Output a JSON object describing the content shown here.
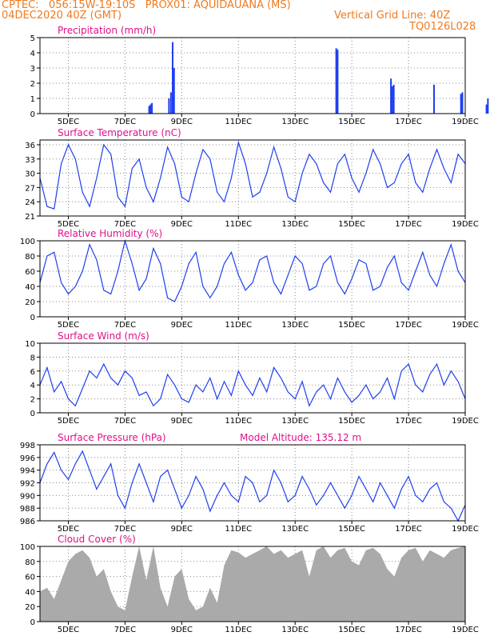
{
  "header": {
    "line1": "CPTEC:   056:15W-19:10S   PROX01: AQUIDAUANA (MS)",
    "line2": "04DEC2020 40Z (GMT)",
    "vgrid": "Vertical Grid Line: 40Z",
    "code": "TQ0126L028"
  },
  "colors": {
    "header": "#f07a1e",
    "title": "#e0108a",
    "line": "#1f3ff0",
    "fill": "#aaaaaa",
    "grid": "#888888"
  },
  "x_ticks": [
    "5DEC",
    "7DEC",
    "9DEC",
    "11DEC",
    "13DEC",
    "15DEC",
    "17DEC",
    "19DEC"
  ],
  "chart_data": [
    {
      "type": "bar",
      "title": "Precipitation (mm/h)",
      "ylim": [
        0,
        5
      ],
      "yticks": [
        0,
        1,
        2,
        3,
        4,
        5
      ],
      "grid": true,
      "x_unit": "days since 04DEC 00Z",
      "bars": [
        [
          3.85,
          0.5
        ],
        [
          3.9,
          0.6
        ],
        [
          3.95,
          0.7
        ],
        [
          4.55,
          1.0
        ],
        [
          4.62,
          1.4
        ],
        [
          4.68,
          4.7
        ],
        [
          4.73,
          3.0
        ],
        [
          10.45,
          4.3
        ],
        [
          10.5,
          4.2
        ],
        [
          12.38,
          2.3
        ],
        [
          12.43,
          1.8
        ],
        [
          12.48,
          1.9
        ],
        [
          13.9,
          1.9
        ],
        [
          14.85,
          1.3
        ],
        [
          14.9,
          1.4
        ],
        [
          15.75,
          0.6
        ],
        [
          15.8,
          1.0
        ]
      ]
    },
    {
      "type": "line",
      "title": "Surface Temperature (nC)",
      "ylim": [
        21,
        37
      ],
      "yticks": [
        21,
        24,
        27,
        30,
        33,
        36
      ],
      "grid": true,
      "x": [
        0,
        0.25,
        0.5,
        0.75,
        1,
        1.25,
        1.5,
        1.75,
        2,
        2.25,
        2.5,
        2.75,
        3,
        3.25,
        3.5,
        3.75,
        4,
        4.25,
        4.5,
        4.75,
        5,
        5.25,
        5.5,
        5.75,
        6,
        6.25,
        6.5,
        6.75,
        7,
        7.25,
        7.5,
        7.75,
        8,
        8.25,
        8.5,
        8.75,
        9,
        9.25,
        9.5,
        9.75,
        10,
        10.25,
        10.5,
        10.75,
        11,
        11.25,
        11.5,
        11.75,
        12,
        12.25,
        12.5,
        12.75,
        13,
        13.25,
        13.5,
        13.75,
        14,
        14.25,
        14.5,
        14.75,
        15
      ],
      "series": [
        {
          "values": [
            29,
            23,
            22.5,
            32,
            36,
            33,
            26,
            23,
            29,
            36,
            34,
            25,
            23,
            31,
            33,
            27,
            24,
            29,
            35.5,
            32,
            25,
            24,
            30,
            35,
            33,
            26,
            24,
            29,
            36.5,
            32,
            25,
            26,
            30,
            35.5,
            31,
            25,
            24,
            30,
            34,
            32,
            28,
            26,
            32,
            34,
            29,
            26,
            30,
            35,
            32,
            27,
            28,
            32,
            34,
            28,
            26,
            31,
            35,
            31,
            28,
            34,
            32
          ]
        }
      ]
    },
    {
      "type": "line",
      "title": "Relative Humidity (%)",
      "ylim": [
        0,
        100
      ],
      "yticks": [
        0,
        20,
        40,
        60,
        80,
        100
      ],
      "grid": true,
      "x": [
        0,
        0.25,
        0.5,
        0.75,
        1,
        1.25,
        1.5,
        1.75,
        2,
        2.25,
        2.5,
        2.75,
        3,
        3.25,
        3.5,
        3.75,
        4,
        4.25,
        4.5,
        4.75,
        5,
        5.25,
        5.5,
        5.75,
        6,
        6.25,
        6.5,
        6.75,
        7,
        7.25,
        7.5,
        7.75,
        8,
        8.25,
        8.5,
        8.75,
        9,
        9.25,
        9.5,
        9.75,
        10,
        10.25,
        10.5,
        10.75,
        11,
        11.25,
        11.5,
        11.75,
        12,
        12.25,
        12.5,
        12.75,
        13,
        13.25,
        13.5,
        13.75,
        14,
        14.25,
        14.5,
        14.75,
        15
      ],
      "series": [
        {
          "values": [
            45,
            80,
            85,
            45,
            30,
            40,
            60,
            95,
            75,
            35,
            30,
            60,
            100,
            70,
            35,
            50,
            90,
            70,
            25,
            20,
            40,
            70,
            85,
            40,
            25,
            40,
            70,
            85,
            55,
            35,
            45,
            75,
            80,
            45,
            30,
            55,
            80,
            70,
            35,
            40,
            70,
            80,
            45,
            30,
            50,
            75,
            70,
            35,
            40,
            65,
            80,
            45,
            35,
            60,
            85,
            55,
            40,
            70,
            95,
            60,
            45
          ]
        }
      ]
    },
    {
      "type": "line",
      "title": "Surface Wind (m/s)",
      "ylim": [
        0,
        10
      ],
      "yticks": [
        0,
        2,
        4,
        6,
        8,
        10
      ],
      "grid": true,
      "x": [
        0,
        0.25,
        0.5,
        0.75,
        1,
        1.25,
        1.5,
        1.75,
        2,
        2.25,
        2.5,
        2.75,
        3,
        3.25,
        3.5,
        3.75,
        4,
        4.25,
        4.5,
        4.75,
        5,
        5.25,
        5.5,
        5.75,
        6,
        6.25,
        6.5,
        6.75,
        7,
        7.25,
        7.5,
        7.75,
        8,
        8.25,
        8.5,
        8.75,
        9,
        9.25,
        9.5,
        9.75,
        10,
        10.25,
        10.5,
        10.75,
        11,
        11.25,
        11.5,
        11.75,
        12,
        12.25,
        12.5,
        12.75,
        13,
        13.25,
        13.5,
        13.75,
        14,
        14.25,
        14.5,
        14.75,
        15
      ],
      "series": [
        {
          "values": [
            4,
            6.5,
            3,
            4.5,
            2,
            1,
            3.5,
            6,
            5,
            7,
            5,
            4,
            6,
            5,
            2.5,
            3,
            1,
            2,
            5.5,
            4,
            2,
            1.5,
            4,
            3,
            5,
            2,
            4.5,
            2.5,
            6,
            4,
            2.5,
            5,
            3,
            6.5,
            5,
            3,
            2,
            4.5,
            1,
            3,
            4,
            2,
            5,
            3,
            1.5,
            2.5,
            4,
            2,
            3,
            5,
            2,
            6,
            7,
            4,
            3,
            5.5,
            7,
            4,
            6,
            4.5,
            2
          ]
        }
      ]
    },
    {
      "type": "line",
      "title": "Surface Pressure (hPa)",
      "annotation": "Model Altitude: 135.12 m",
      "ylim": [
        986,
        998
      ],
      "yticks": [
        986,
        988,
        990,
        992,
        994,
        996,
        998
      ],
      "grid": true,
      "x": [
        0,
        0.25,
        0.5,
        0.75,
        1,
        1.25,
        1.5,
        1.75,
        2,
        2.25,
        2.5,
        2.75,
        3,
        3.25,
        3.5,
        3.75,
        4,
        4.25,
        4.5,
        4.75,
        5,
        5.25,
        5.5,
        5.75,
        6,
        6.25,
        6.5,
        6.75,
        7,
        7.25,
        7.5,
        7.75,
        8,
        8.25,
        8.5,
        8.75,
        9,
        9.25,
        9.5,
        9.75,
        10,
        10.25,
        10.5,
        10.75,
        11,
        11.25,
        11.5,
        11.75,
        12,
        12.25,
        12.5,
        12.75,
        13,
        13.25,
        13.5,
        13.75,
        14,
        14.25,
        14.5,
        14.75,
        15
      ],
      "series": [
        {
          "values": [
            992,
            995,
            996.8,
            994,
            992.5,
            995,
            997,
            994,
            991,
            993,
            995,
            990,
            988,
            992,
            995,
            992,
            989,
            993,
            994,
            991,
            988,
            990,
            993,
            991,
            987.5,
            990,
            992,
            990,
            989,
            993,
            992,
            989,
            990,
            994,
            992,
            989,
            990,
            993,
            991,
            988.5,
            990,
            992,
            990,
            988,
            990,
            993,
            991,
            989,
            992,
            990,
            988,
            991,
            993,
            990,
            989,
            991,
            992,
            989,
            988,
            986,
            988.5
          ]
        }
      ]
    },
    {
      "type": "area",
      "title": "Cloud Cover (%)",
      "ylim": [
        0,
        100
      ],
      "yticks": [
        0,
        20,
        40,
        60,
        80,
        100
      ],
      "grid": true,
      "x": [
        0,
        0.25,
        0.5,
        0.75,
        1,
        1.25,
        1.5,
        1.75,
        2,
        2.25,
        2.5,
        2.75,
        3,
        3.25,
        3.5,
        3.75,
        4,
        4.25,
        4.5,
        4.75,
        5,
        5.25,
        5.5,
        5.75,
        6,
        6.25,
        6.5,
        6.75,
        7,
        7.25,
        7.5,
        7.75,
        8,
        8.25,
        8.5,
        8.75,
        9,
        9.25,
        9.5,
        9.75,
        10,
        10.25,
        10.5,
        10.75,
        11,
        11.25,
        11.5,
        11.75,
        12,
        12.25,
        12.5,
        12.75,
        13,
        13.25,
        13.5,
        13.75,
        14,
        14.25,
        14.5,
        14.75,
        15
      ],
      "series": [
        {
          "values": [
            40,
            45,
            30,
            55,
            80,
            90,
            95,
            85,
            60,
            70,
            40,
            20,
            15,
            60,
            100,
            55,
            100,
            45,
            20,
            60,
            70,
            30,
            15,
            20,
            45,
            25,
            75,
            95,
            92,
            85,
            90,
            95,
            100,
            90,
            95,
            85,
            90,
            95,
            60,
            95,
            100,
            85,
            95,
            98,
            80,
            75,
            95,
            98,
            90,
            70,
            60,
            85,
            95,
            98,
            80,
            95,
            90,
            85,
            95,
            98,
            100
          ]
        }
      ]
    }
  ]
}
